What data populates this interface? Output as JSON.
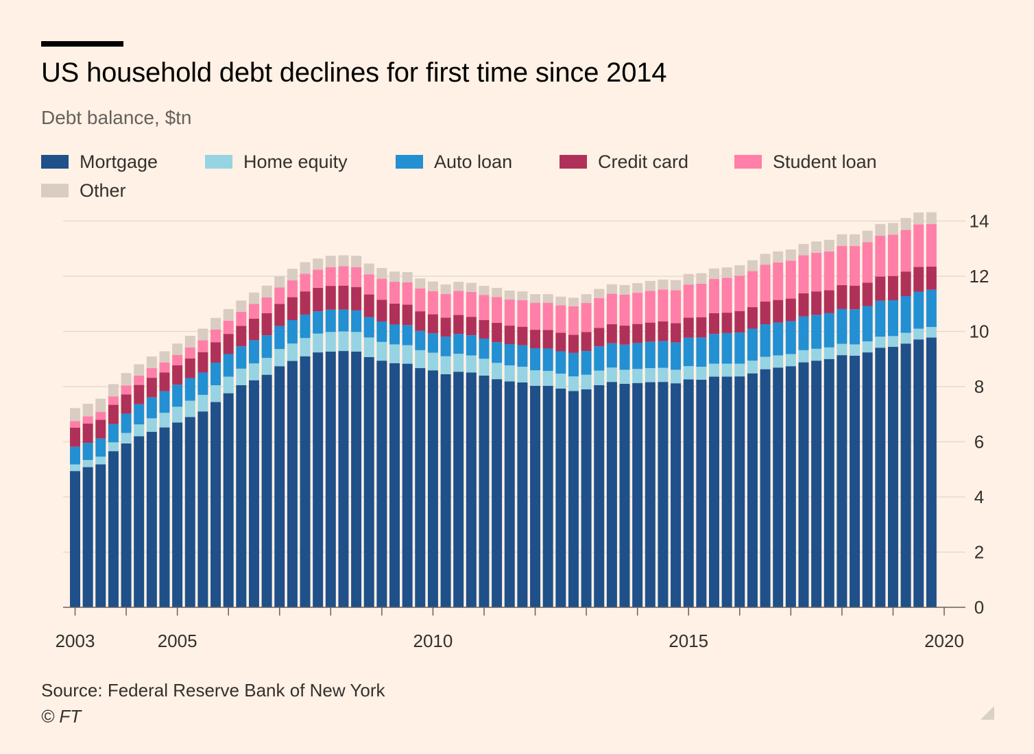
{
  "header": {
    "title": "US household debt declines for first time since 2014",
    "subtitle": "Debt balance, $tn"
  },
  "footer": {
    "source": "Source: Federal Reserve Bank of New York",
    "copyright": "© FT"
  },
  "colors": {
    "background": "#fff1e5",
    "mortgage": "#1f5089",
    "home_equity": "#96d3e3",
    "auto_loan": "#2290d2",
    "credit_card": "#af3159",
    "student_loan": "#ff7fa8",
    "other": "#d9ccc2"
  },
  "legend": [
    {
      "label": "Mortgage",
      "color": "#1f5089"
    },
    {
      "label": "Home equity",
      "color": "#96d3e3"
    },
    {
      "label": "Auto loan",
      "color": "#2290d2"
    },
    {
      "label": "Credit card",
      "color": "#af3159"
    },
    {
      "label": "Student loan",
      "color": "#ff7fa8"
    },
    {
      "label": "Other",
      "color": "#d9ccc2"
    }
  ],
  "chart_data": {
    "type": "bar",
    "stacked": true,
    "start_label": "2003 Q1",
    "x_tick_labels": [
      "2003",
      "2005",
      "2010",
      "2015",
      "2020"
    ],
    "y_ticks": [
      0,
      2,
      4,
      6,
      8,
      10,
      12,
      14
    ],
    "ylim": [
      0,
      14.4
    ],
    "y_axis_side": "right",
    "grid": true,
    "legend_position": "top",
    "series": [
      {
        "name": "Mortgage",
        "values": [
          4.94,
          5.08,
          5.18,
          5.66,
          5.94,
          6.2,
          6.36,
          6.52,
          6.7,
          6.9,
          7.1,
          7.44,
          7.76,
          8.05,
          8.23,
          8.43,
          8.74,
          8.93,
          9.1,
          9.24,
          9.27,
          9.29,
          9.27,
          9.07,
          8.94,
          8.85,
          8.83,
          8.67,
          8.59,
          8.45,
          8.54,
          8.51,
          8.4,
          8.27,
          8.19,
          8.15,
          8.03,
          8.03,
          7.93,
          7.84,
          7.9,
          8.05,
          8.17,
          8.1,
          8.13,
          8.16,
          8.17,
          8.12,
          8.26,
          8.25,
          8.36,
          8.36,
          8.37,
          8.48,
          8.63,
          8.69,
          8.74,
          8.88,
          8.94,
          9.0,
          9.14,
          9.12,
          9.24,
          9.41,
          9.44,
          9.56,
          9.71,
          9.78
        ]
      },
      {
        "name": "Home equity",
        "values": [
          0.24,
          0.26,
          0.28,
          0.32,
          0.38,
          0.43,
          0.49,
          0.53,
          0.57,
          0.59,
          0.6,
          0.61,
          0.6,
          0.6,
          0.61,
          0.61,
          0.62,
          0.63,
          0.66,
          0.68,
          0.71,
          0.71,
          0.71,
          0.71,
          0.68,
          0.68,
          0.67,
          0.65,
          0.64,
          0.65,
          0.65,
          0.62,
          0.61,
          0.59,
          0.58,
          0.57,
          0.56,
          0.54,
          0.54,
          0.53,
          0.53,
          0.53,
          0.52,
          0.51,
          0.51,
          0.51,
          0.51,
          0.49,
          0.48,
          0.47,
          0.47,
          0.47,
          0.46,
          0.46,
          0.45,
          0.44,
          0.44,
          0.44,
          0.43,
          0.42,
          0.41,
          0.41,
          0.4,
          0.4,
          0.39,
          0.39,
          0.39,
          0.38
        ]
      },
      {
        "name": "Auto loan",
        "values": [
          0.64,
          0.62,
          0.66,
          0.66,
          0.7,
          0.73,
          0.76,
          0.78,
          0.8,
          0.82,
          0.81,
          0.82,
          0.82,
          0.81,
          0.84,
          0.82,
          0.84,
          0.85,
          0.85,
          0.81,
          0.81,
          0.79,
          0.78,
          0.74,
          0.74,
          0.72,
          0.73,
          0.7,
          0.7,
          0.71,
          0.72,
          0.73,
          0.73,
          0.75,
          0.77,
          0.78,
          0.8,
          0.81,
          0.81,
          0.85,
          0.86,
          0.88,
          0.88,
          0.91,
          0.94,
          0.96,
          0.97,
          0.99,
          1.03,
          1.06,
          1.08,
          1.11,
          1.13,
          1.16,
          1.18,
          1.19,
          1.19,
          1.22,
          1.23,
          1.24,
          1.26,
          1.27,
          1.28,
          1.3,
          1.3,
          1.33,
          1.34,
          1.35
        ]
      },
      {
        "name": "Credit card",
        "values": [
          0.69,
          0.7,
          0.68,
          0.7,
          0.7,
          0.7,
          0.71,
          0.68,
          0.7,
          0.71,
          0.74,
          0.74,
          0.73,
          0.74,
          0.78,
          0.8,
          0.8,
          0.83,
          0.84,
          0.85,
          0.86,
          0.87,
          0.85,
          0.82,
          0.79,
          0.76,
          0.74,
          0.71,
          0.69,
          0.69,
          0.69,
          0.67,
          0.67,
          0.7,
          0.67,
          0.67,
          0.67,
          0.67,
          0.67,
          0.66,
          0.69,
          0.67,
          0.69,
          0.69,
          0.69,
          0.69,
          0.71,
          0.7,
          0.73,
          0.73,
          0.75,
          0.74,
          0.78,
          0.78,
          0.82,
          0.82,
          0.82,
          0.84,
          0.85,
          0.83,
          0.87,
          0.86,
          0.85,
          0.88,
          0.88,
          0.89,
          0.9,
          0.84
        ]
      },
      {
        "name": "Student loan",
        "values": [
          0.24,
          0.26,
          0.28,
          0.3,
          0.32,
          0.34,
          0.35,
          0.36,
          0.38,
          0.4,
          0.43,
          0.46,
          0.48,
          0.51,
          0.54,
          0.57,
          0.59,
          0.61,
          0.64,
          0.66,
          0.68,
          0.7,
          0.72,
          0.73,
          0.76,
          0.79,
          0.81,
          0.83,
          0.84,
          0.86,
          0.87,
          0.9,
          0.91,
          0.94,
          0.95,
          0.96,
          0.98,
          0.99,
          1.0,
          1.03,
          1.05,
          1.08,
          1.11,
          1.12,
          1.13,
          1.15,
          1.16,
          1.19,
          1.2,
          1.22,
          1.24,
          1.26,
          1.28,
          1.31,
          1.34,
          1.36,
          1.37,
          1.38,
          1.4,
          1.41,
          1.42,
          1.44,
          1.46,
          1.48,
          1.5,
          1.51,
          1.54,
          1.54
        ]
      },
      {
        "name": "Other",
        "values": [
          0.47,
          0.46,
          0.48,
          0.45,
          0.45,
          0.41,
          0.42,
          0.41,
          0.41,
          0.42,
          0.42,
          0.42,
          0.42,
          0.41,
          0.41,
          0.43,
          0.41,
          0.42,
          0.42,
          0.4,
          0.41,
          0.4,
          0.41,
          0.39,
          0.39,
          0.37,
          0.37,
          0.36,
          0.35,
          0.34,
          0.33,
          0.33,
          0.33,
          0.33,
          0.32,
          0.32,
          0.31,
          0.31,
          0.31,
          0.31,
          0.32,
          0.33,
          0.34,
          0.35,
          0.35,
          0.36,
          0.36,
          0.37,
          0.38,
          0.38,
          0.38,
          0.38,
          0.38,
          0.39,
          0.39,
          0.4,
          0.41,
          0.41,
          0.41,
          0.42,
          0.42,
          0.42,
          0.42,
          0.42,
          0.42,
          0.43,
          0.43,
          0.43
        ]
      }
    ]
  }
}
